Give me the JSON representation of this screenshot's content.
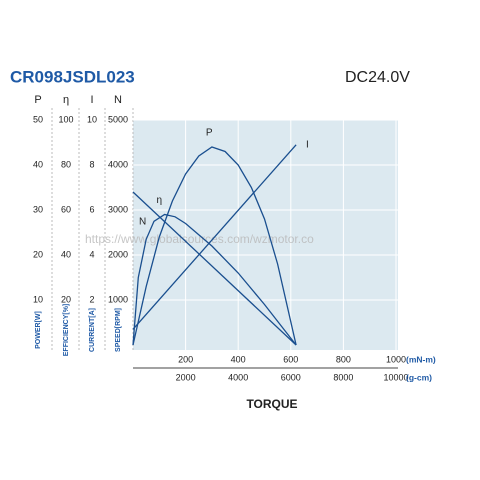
{
  "chart_data": {
    "type": "line",
    "title": "CR098JSDL023",
    "subtitle": "DC24.0V",
    "x_label": "TORQUE",
    "watermark": "https://www.globalsources.com/wzmotor.co",
    "xlim": [
      0,
      1000
    ],
    "xticks": [
      200,
      400,
      600,
      800,
      1000
    ],
    "x_unit": "(mN-m)",
    "x2lim": [
      0,
      10000
    ],
    "x2ticks": [
      2000,
      4000,
      6000,
      8000,
      10000
    ],
    "x2_unit": "(g-cm)",
    "y_axes": [
      {
        "header": "P",
        "label": "POWER[W]",
        "ylim": [
          0,
          50
        ],
        "yticks": [
          10,
          20,
          30,
          40,
          50
        ]
      },
      {
        "header": "η",
        "label": "EFFICIENCY[%]",
        "ylim": [
          0,
          100
        ],
        "yticks": [
          20,
          40,
          60,
          80,
          100
        ]
      },
      {
        "header": "I",
        "label": "CURRENT[A]",
        "ylim": [
          0,
          10
        ],
        "yticks": [
          2,
          4,
          6,
          8,
          10
        ]
      },
      {
        "header": "N",
        "label": "SPEED[RPM]",
        "ylim": [
          0,
          5000
        ],
        "yticks": [
          1000,
          2000,
          3000,
          4000,
          5000
        ]
      }
    ],
    "grid": true,
    "series": [
      {
        "name": "P",
        "axis": 0,
        "color": "#1a4f8f",
        "x": [
          0,
          50,
          100,
          150,
          200,
          250,
          300,
          350,
          400,
          450,
          500,
          550,
          620
        ],
        "values": [
          0,
          13,
          24,
          32,
          38,
          42,
          44,
          43,
          40,
          35,
          28,
          18,
          0
        ]
      },
      {
        "name": "I",
        "axis": 2,
        "color": "#1a4f8f",
        "x": [
          0,
          620
        ],
        "values": [
          0.7,
          8.9
        ]
      },
      {
        "name": "N",
        "axis": 3,
        "color": "#1a4f8f",
        "x": [
          0,
          620
        ],
        "values": [
          3400,
          0
        ]
      },
      {
        "name": "η",
        "axis": 1,
        "color": "#1a4f8f",
        "x": [
          0,
          20,
          50,
          80,
          120,
          160,
          200,
          300,
          400,
          500,
          620
        ],
        "values": [
          0,
          30,
          47,
          55,
          58,
          57,
          54,
          44,
          32,
          18,
          0
        ]
      }
    ]
  }
}
